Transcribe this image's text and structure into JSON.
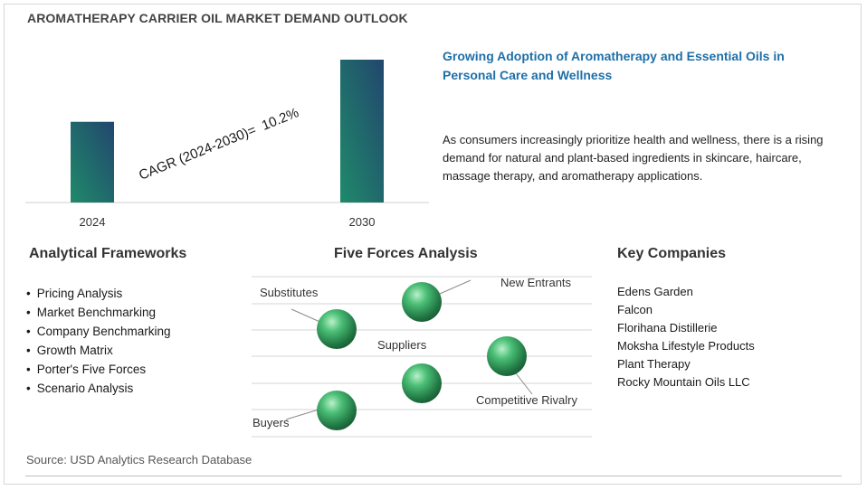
{
  "title": "AROMATHERAPY CARRIER OIL MARKET DEMAND OUTLOOK",
  "chart_data": {
    "type": "bar",
    "categories": [
      "2024",
      "2030"
    ],
    "values": [
      1.0,
      1.77
    ],
    "title": "",
    "xlabel": "",
    "ylabel": "",
    "annotation": "CAGR (2024-2030)=  10.2%",
    "colors": [
      "#1f8a6a",
      "#22466e"
    ]
  },
  "highlight": {
    "title": "Growing Adoption of Aromatherapy and Essential Oils in Personal Care and Wellness",
    "text": "As consumers increasingly prioritize health and wellness, there is a rising demand for natural and plant-based ingredients in skincare, haircare, massage therapy, and aromatherapy applications."
  },
  "frameworks": {
    "heading": "Analytical Frameworks",
    "items": [
      "Pricing Analysis",
      "Market Benchmarking",
      "Company Benchmarking",
      "Growth Matrix",
      "Porter's Five Forces",
      "Scenario Analysis"
    ]
  },
  "forces": {
    "heading": "Five Forces Analysis",
    "labels": [
      "Substitutes",
      "New Entrants",
      "Suppliers",
      "Competitive Rivalry",
      "Buyers"
    ]
  },
  "companies": {
    "heading": "Key Companies",
    "items": [
      "Edens Garden",
      "Falcon",
      "Florihana Distillerie",
      "Moksha Lifestyle Products",
      "Plant Therapy",
      "Rocky Mountain Oils LLC"
    ]
  },
  "source": "Source: USD Analytics Research Database",
  "colors": {
    "accent": "#1e6fa8",
    "sphere": "#2e9e5a"
  }
}
